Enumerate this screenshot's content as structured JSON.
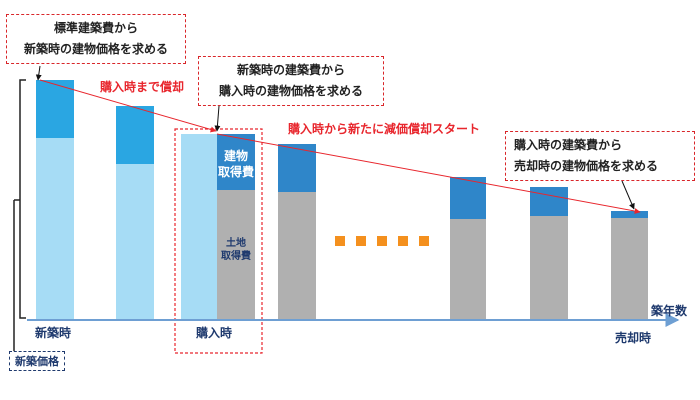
{
  "callouts": {
    "standard_cost": {
      "line1": "標準建築費から",
      "line2": "新築時の建物価格を求める"
    },
    "new_build_cost": {
      "line1": "新築時の建築費から",
      "line2": "購入時の建物価格を求める"
    },
    "purchase_cost": {
      "line1": "購入時の建築費から",
      "line2": "売却時の建物価格を求める"
    }
  },
  "notes": {
    "depreciation_until_purchase": "購入時まで償却",
    "new_depreciation_start": "購入時から新たに減価償却スタート"
  },
  "bar_labels": {
    "building_line1": "建物",
    "building_line2": "取得費",
    "land_line1": "土地",
    "land_line2": "取得費"
  },
  "axis": {
    "label": "築年数",
    "new_build": "新築時",
    "purchase": "購入時",
    "sale": "売却時",
    "new_price": "新築価格"
  },
  "colors": {
    "building_dark": "#2f86c9",
    "building_light_top": "#2aa6e2",
    "building_light_bottom": "#a6dcf5",
    "land": "#b0b0b0",
    "axis": "#6e9fd3",
    "red": "#e8262d",
    "dots": "#f4901e"
  }
}
